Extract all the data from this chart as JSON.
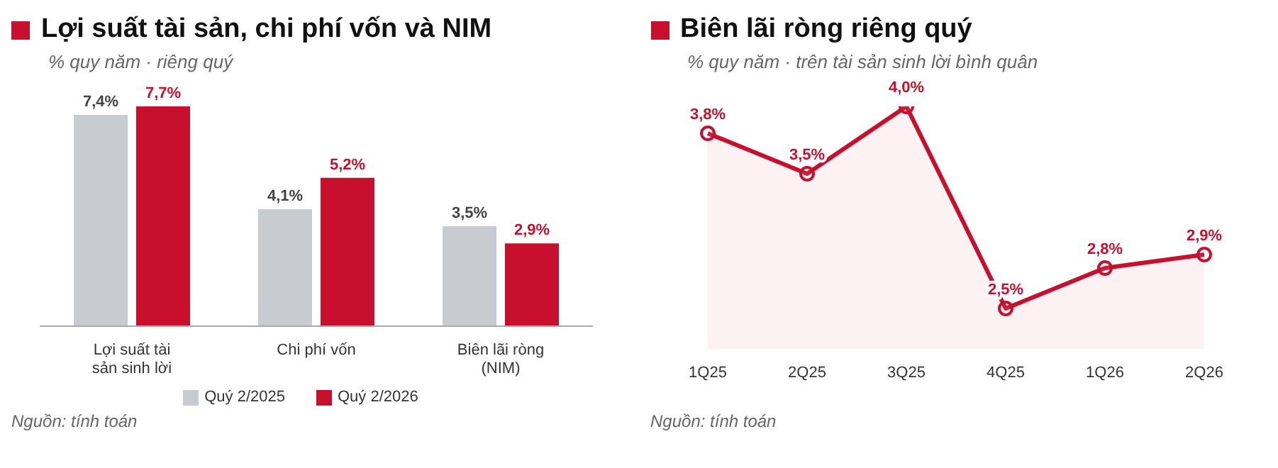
{
  "chart_data": [
    {
      "type": "bar",
      "title": "Lợi suất tài sản, chi phí vốn và NIM",
      "subtitle": "% quy năm · riêng quý",
      "categories": [
        "Lợi suất tài sản sinh lời",
        "Chi phí vốn",
        "Biên lãi ròng (NIM)"
      ],
      "series": [
        {
          "name": "Quý 2/2025",
          "color": "#c8ccd0",
          "values": [
            7.4,
            4.1,
            3.5
          ],
          "value_labels": [
            "7,4%",
            "4,1%",
            "3,5%"
          ]
        },
        {
          "name": "Quý 2/2026",
          "color": "#c8102e",
          "values": [
            7.7,
            5.2,
            2.9
          ],
          "value_labels": [
            "7,7%",
            "5,2%",
            "2,9%"
          ]
        }
      ],
      "tick_labels": "x",
      "legend": "bottom",
      "grid": false,
      "annotations": [
        "Nguồn: tính toán"
      ]
    },
    {
      "type": "area",
      "title": "Biên lãi ròng riêng quý",
      "subtitle": "% quy năm · trên tài sản sinh lời bình quân",
      "categories": [
        "1Q25",
        "2Q25",
        "3Q25",
        "4Q25",
        "1Q26",
        "2Q26"
      ],
      "series": [
        {
          "color": "#c8102e",
          "values": [
            3.8,
            3.5,
            4.0,
            2.5,
            2.8,
            2.9
          ],
          "value_labels": [
            "3,8%",
            "3,5%",
            "4,0%",
            "2,5%",
            "2,8%",
            "2,9%"
          ]
        }
      ],
      "tick_labels": "x",
      "marker": "circle",
      "grid": false,
      "annotations": [
        "Nguồn: tính toán"
      ]
    }
  ]
}
